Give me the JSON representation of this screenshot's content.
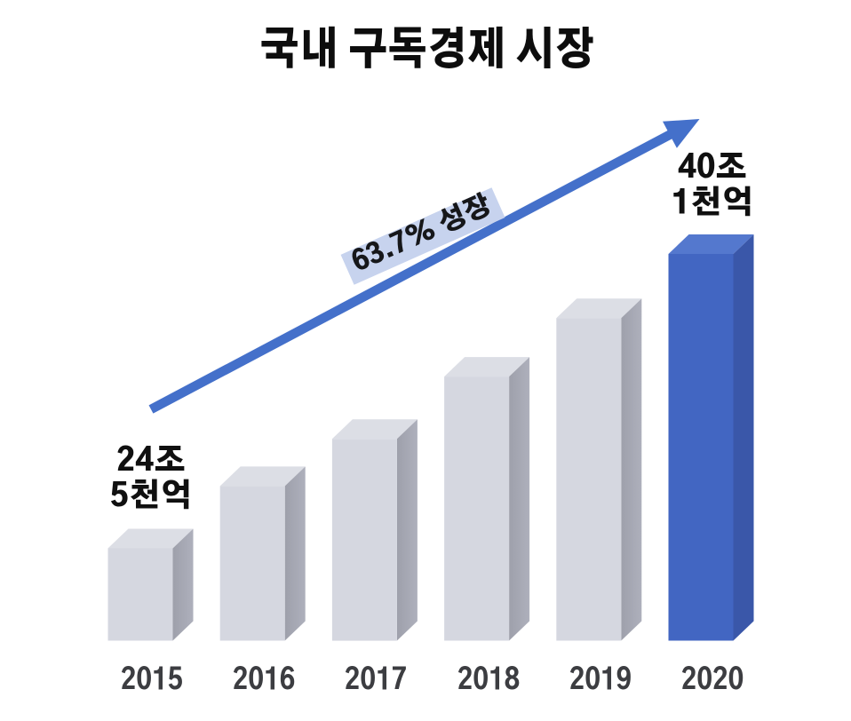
{
  "page": {
    "background_color": "#ffffff",
    "language": "ko"
  },
  "header": {
    "title": "국내 구독경제 시장"
  },
  "chart_data": {
    "type": "bar",
    "style": "3d-column-infographic",
    "title": "국내 구독경제 시장",
    "categories": [
      "2015",
      "2016",
      "2017",
      "2018",
      "2019",
      "2020"
    ],
    "series": [
      {
        "name": "국내 구독경제 시장 규모",
        "unit": "조원",
        "values": [
          24.5,
          27.8,
          30.3,
          33.6,
          36.7,
          40.1
        ]
      }
    ],
    "value_axis": {
      "visible": false,
      "min": 24.5,
      "max": 40.1
    },
    "grid": false,
    "legend": false,
    "highlight_category": "2020",
    "value_labels": [
      {
        "category": "2015",
        "lines": [
          "24조",
          "5천억"
        ]
      },
      {
        "category": "2020",
        "lines": [
          "40조",
          "1천억"
        ]
      }
    ],
    "annotation": {
      "growth_label": "63.7% 성장",
      "growth_percent": 63.7,
      "from_category": "2015",
      "to_category": "2020"
    },
    "colors": {
      "bar_front": "#d5d7e0",
      "bar_top": "#dcdee5",
      "bar_side_dark": "#9ea0ab",
      "bar_side_light": "#aeb0bc",
      "highlight_front": "#4266c2",
      "highlight_top": "#5478ce",
      "highlight_side": "#3a57a9",
      "arrow": "#4470ca",
      "growth_label_bg": "#c7d3ee",
      "title_text": "#0d0d0d",
      "value_label_text": "#101010",
      "axis_label_text": "#3c3d41"
    }
  }
}
